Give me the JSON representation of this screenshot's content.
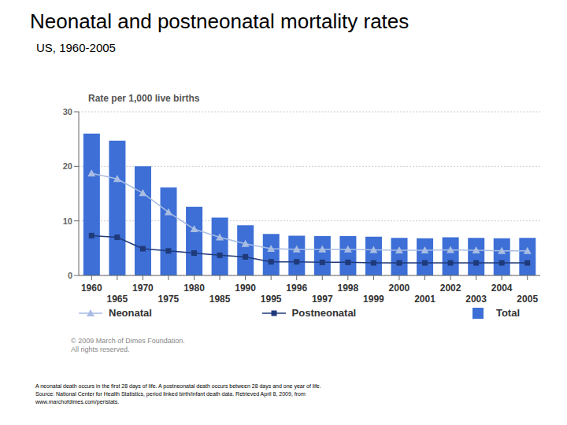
{
  "chart_data": {
    "type": "bar",
    "title": "Neonatal and postneonatal mortality rates",
    "subtitle": "US, 1960-2005",
    "y_label": "Rate per 1,000 live births",
    "categories": [
      "1960",
      "1965",
      "1970",
      "1975",
      "1980",
      "1985",
      "1990",
      "1995",
      "1996",
      "1997",
      "1998",
      "1999",
      "2000",
      "2001",
      "2002",
      "2003",
      "2004",
      "2005"
    ],
    "series": [
      {
        "name": "Neonatal",
        "type": "line",
        "color": "#a9bde3",
        "marker": "triangle",
        "values": [
          18.7,
          17.7,
          15.1,
          11.6,
          8.5,
          7.0,
          5.8,
          4.9,
          4.8,
          4.8,
          4.8,
          4.7,
          4.6,
          4.6,
          4.7,
          4.6,
          4.5,
          4.5
        ]
      },
      {
        "name": "Postneonatal",
        "type": "line",
        "color": "#1f3a7a",
        "marker": "square",
        "values": [
          7.3,
          7.0,
          4.9,
          4.5,
          4.1,
          3.7,
          3.4,
          2.5,
          2.5,
          2.4,
          2.4,
          2.3,
          2.3,
          2.3,
          2.3,
          2.3,
          2.3,
          2.3
        ]
      },
      {
        "name": "Total",
        "type": "bar",
        "color": "#3d6fd6",
        "values": [
          26.0,
          24.7,
          20.0,
          16.1,
          12.6,
          10.6,
          9.2,
          7.6,
          7.3,
          7.2,
          7.2,
          7.1,
          6.9,
          6.8,
          7.0,
          6.9,
          6.8,
          6.9
        ]
      }
    ],
    "ylim": [
      0,
      30
    ],
    "yticks": [
      0,
      10,
      20,
      30
    ],
    "grid": true,
    "legend": "bottom",
    "copyright": [
      "© 2009 March of Dimes Foundation.",
      "All rights reserved."
    ],
    "notes": [
      "A neonatal death occurs in the first 28 days of life. A postneonatal death occurs between 28 days and one year of life.",
      "Source: National Center for Health Statistics, period linked birth/infant death data. Retrieved April 8, 2009, from",
      "www.marchofdimes.com/peristats."
    ]
  }
}
